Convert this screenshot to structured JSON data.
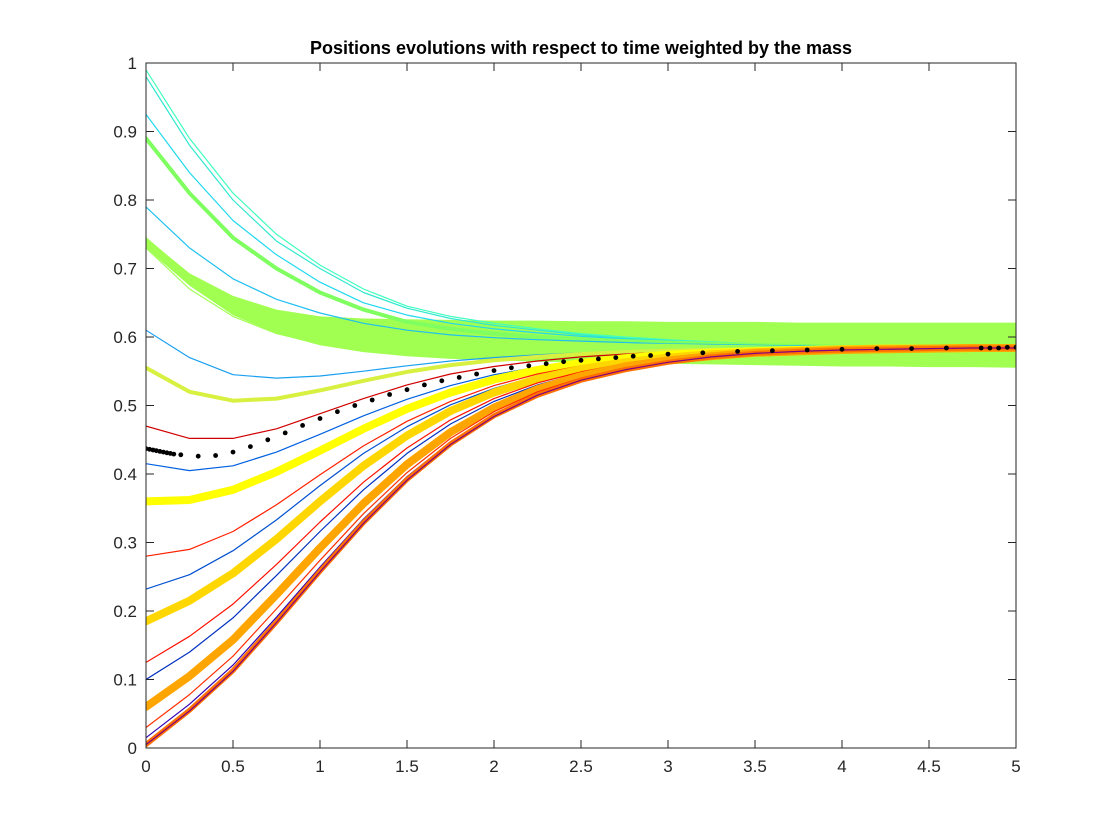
{
  "chart_data": {
    "type": "line",
    "title": "Positions evolutions with respect to time weighted by the mass",
    "xlabel": "",
    "ylabel": "",
    "xlim": [
      0,
      5
    ],
    "ylim": [
      0,
      1
    ],
    "xticks": [
      0,
      0.5,
      1,
      1.5,
      2,
      2.5,
      3,
      3.5,
      4,
      4.5,
      5
    ],
    "yticks": [
      0,
      0.1,
      0.2,
      0.3,
      0.4,
      0.5,
      0.6,
      0.7,
      0.8,
      0.9,
      1
    ],
    "xtick_labels": [
      "0",
      "0.5",
      "1",
      "1.5",
      "2",
      "2.5",
      "3",
      "3.5",
      "4",
      "4.5",
      "5"
    ],
    "ytick_labels": [
      "0",
      "0.1",
      "0.2",
      "0.3",
      "0.4",
      "0.5",
      "0.6",
      "0.7",
      "0.8",
      "0.9",
      "1"
    ],
    "grid": false,
    "legend": "none",
    "x": [
      0,
      0.25,
      0.5,
      0.75,
      1,
      1.25,
      1.5,
      1.75,
      2,
      2.25,
      2.5,
      2.75,
      3,
      3.25,
      3.5,
      3.75,
      4,
      4.25,
      4.5,
      4.75,
      5
    ],
    "series": [
      {
        "color": "#40ffbf",
        "values": [
          0.99,
          0.89,
          0.81,
          0.75,
          0.705,
          0.67,
          0.645,
          0.63,
          0.62,
          0.612,
          0.605,
          0.6,
          0.596,
          0.593,
          0.59,
          0.588,
          0.587,
          0.586,
          0.585,
          0.585,
          0.585
        ]
      },
      {
        "color": "#30e8d0",
        "values": [
          0.98,
          0.88,
          0.8,
          0.74,
          0.7,
          0.665,
          0.642,
          0.627,
          0.617,
          0.61,
          0.603,
          0.598,
          0.595,
          0.592,
          0.589,
          0.588,
          0.587,
          0.586,
          0.585,
          0.585,
          0.585
        ]
      },
      {
        "color": "#20d8f0",
        "values": [
          0.925,
          0.84,
          0.77,
          0.72,
          0.68,
          0.65,
          0.632,
          0.62,
          0.612,
          0.606,
          0.601,
          0.597,
          0.594,
          0.591,
          0.589,
          0.588,
          0.587,
          0.586,
          0.585,
          0.585,
          0.585
        ]
      },
      {
        "color": "#80ff60",
        "width": 4,
        "values": [
          0.89,
          0.81,
          0.745,
          0.7,
          0.665,
          0.64,
          0.622,
          0.612,
          0.605,
          0.6,
          0.597,
          0.594,
          0.592,
          0.59,
          0.588,
          0.587,
          0.586,
          0.586,
          0.585,
          0.585,
          0.585
        ]
      },
      {
        "color": "#20c0f0",
        "values": [
          0.79,
          0.73,
          0.685,
          0.655,
          0.635,
          0.62,
          0.61,
          0.603,
          0.599,
          0.596,
          0.594,
          0.592,
          0.59,
          0.589,
          0.588,
          0.587,
          0.586,
          0.586,
          0.585,
          0.585,
          0.585
        ]
      },
      {
        "color": "#a0ff50",
        "values": [
          0.745,
          0.69,
          0.655,
          0.632,
          0.618,
          0.609,
          0.602,
          0.598,
          0.595,
          0.593,
          0.591,
          0.59,
          0.589,
          0.588,
          0.587,
          0.586,
          0.586,
          0.585,
          0.585,
          0.585,
          0.585
        ]
      },
      {
        "color": "#a0ff50",
        "values": [
          0.73,
          0.67,
          0.63,
          0.605,
          0.59,
          0.58,
          0.574,
          0.571,
          0.57,
          0.57,
          0.571,
          0.572,
          0.574,
          0.576,
          0.578,
          0.579,
          0.58,
          0.581,
          0.582,
          0.583,
          0.583
        ]
      },
      {
        "color": "#1aa0f0",
        "values": [
          0.61,
          0.57,
          0.545,
          0.54,
          0.543,
          0.55,
          0.558,
          0.565,
          0.57,
          0.574,
          0.577,
          0.579,
          0.58,
          0.581,
          0.582,
          0.583,
          0.583,
          0.584,
          0.584,
          0.584,
          0.585
        ]
      },
      {
        "color": "#d8f040",
        "width": 4,
        "values": [
          0.555,
          0.52,
          0.507,
          0.51,
          0.522,
          0.536,
          0.549,
          0.559,
          0.566,
          0.571,
          0.575,
          0.578,
          0.58,
          0.581,
          0.582,
          0.583,
          0.583,
          0.584,
          0.584,
          0.584,
          0.585
        ]
      },
      {
        "color": "#d00000",
        "values": [
          0.47,
          0.452,
          0.452,
          0.466,
          0.488,
          0.51,
          0.53,
          0.546,
          0.557,
          0.565,
          0.571,
          0.575,
          0.578,
          0.58,
          0.581,
          0.582,
          0.583,
          0.583,
          0.584,
          0.584,
          0.584
        ]
      },
      {
        "color": "#0060e0",
        "values": [
          0.415,
          0.405,
          0.412,
          0.432,
          0.458,
          0.485,
          0.509,
          0.529,
          0.545,
          0.556,
          0.565,
          0.571,
          0.575,
          0.578,
          0.58,
          0.581,
          0.582,
          0.583,
          0.583,
          0.584,
          0.584
        ]
      },
      {
        "color": "#ffff00",
        "width": 8,
        "values": [
          0.36,
          0.362,
          0.377,
          0.403,
          0.434,
          0.466,
          0.495,
          0.519,
          0.538,
          0.552,
          0.562,
          0.569,
          0.574,
          0.577,
          0.579,
          0.581,
          0.582,
          0.583,
          0.583,
          0.584,
          0.584
        ]
      },
      {
        "color": "#ff2000",
        "values": [
          0.28,
          0.29,
          0.316,
          0.355,
          0.399,
          0.441,
          0.477,
          0.506,
          0.529,
          0.546,
          0.558,
          0.567,
          0.572,
          0.576,
          0.579,
          0.581,
          0.582,
          0.583,
          0.583,
          0.584,
          0.584
        ]
      },
      {
        "color": "#0050d0",
        "values": [
          0.232,
          0.253,
          0.288,
          0.333,
          0.383,
          0.43,
          0.469,
          0.501,
          0.525,
          0.543,
          0.556,
          0.565,
          0.571,
          0.575,
          0.578,
          0.58,
          0.582,
          0.583,
          0.583,
          0.584,
          0.584
        ]
      },
      {
        "color": "#ffd700",
        "width": 8,
        "values": [
          0.185,
          0.215,
          0.255,
          0.305,
          0.36,
          0.412,
          0.456,
          0.492,
          0.519,
          0.539,
          0.553,
          0.563,
          0.57,
          0.575,
          0.578,
          0.58,
          0.582,
          0.583,
          0.583,
          0.584,
          0.584
        ]
      },
      {
        "color": "#ff1000",
        "values": [
          0.125,
          0.163,
          0.21,
          0.268,
          0.33,
          0.388,
          0.438,
          0.479,
          0.51,
          0.533,
          0.549,
          0.561,
          0.569,
          0.574,
          0.578,
          0.58,
          0.582,
          0.583,
          0.583,
          0.584,
          0.584
        ]
      },
      {
        "color": "#0030c0",
        "values": [
          0.1,
          0.14,
          0.19,
          0.252,
          0.316,
          0.377,
          0.43,
          0.473,
          0.506,
          0.53,
          0.547,
          0.56,
          0.568,
          0.573,
          0.577,
          0.58,
          0.582,
          0.583,
          0.583,
          0.584,
          0.584
        ]
      },
      {
        "color": "#ffa500",
        "width": 8,
        "values": [
          0.06,
          0.105,
          0.158,
          0.224,
          0.292,
          0.357,
          0.414,
          0.461,
          0.497,
          0.524,
          0.543,
          0.557,
          0.566,
          0.572,
          0.577,
          0.579,
          0.581,
          0.582,
          0.583,
          0.584,
          0.584
        ]
      },
      {
        "color": "#ff3000",
        "values": [
          0.03,
          0.078,
          0.134,
          0.203,
          0.274,
          0.342,
          0.402,
          0.452,
          0.491,
          0.52,
          0.54,
          0.555,
          0.565,
          0.572,
          0.576,
          0.579,
          0.581,
          0.582,
          0.583,
          0.584,
          0.584
        ]
      },
      {
        "color": "#3000b0",
        "values": [
          0.015,
          0.064,
          0.121,
          0.191,
          0.264,
          0.334,
          0.396,
          0.447,
          0.487,
          0.517,
          0.538,
          0.553,
          0.564,
          0.571,
          0.576,
          0.579,
          0.581,
          0.582,
          0.583,
          0.584,
          0.584
        ]
      },
      {
        "color": "#ff7000",
        "width": 5,
        "values": [
          0.005,
          0.055,
          0.113,
          0.184,
          0.258,
          0.329,
          0.392,
          0.444,
          0.485,
          0.515,
          0.537,
          0.552,
          0.563,
          0.571,
          0.576,
          0.579,
          0.581,
          0.582,
          0.583,
          0.584,
          0.584
        ]
      },
      {
        "color": "#800080",
        "values": [
          0.005,
          0.054,
          0.112,
          0.183,
          0.257,
          0.328,
          0.391,
          0.443,
          0.484,
          0.515,
          0.537,
          0.552,
          0.563,
          0.571,
          0.576,
          0.579,
          0.581,
          0.582,
          0.583,
          0.584,
          0.584
        ]
      }
    ],
    "band": {
      "color": "#a0ff50",
      "x": [
        0,
        0.25,
        0.5,
        0.75,
        1,
        1.25,
        1.5,
        1.75,
        2,
        2.25,
        2.5,
        2.75,
        3,
        3.25,
        3.5,
        3.75,
        4,
        4.25,
        4.5,
        4.75,
        5
      ],
      "upper": [
        0.745,
        0.693,
        0.66,
        0.64,
        0.63,
        0.627,
        0.626,
        0.625,
        0.624,
        0.624,
        0.623,
        0.623,
        0.622,
        0.622,
        0.622,
        0.621,
        0.621,
        0.621,
        0.621,
        0.621,
        0.621
      ],
      "lower": [
        0.73,
        0.675,
        0.632,
        0.605,
        0.588,
        0.578,
        0.572,
        0.568,
        0.566,
        0.564,
        0.563,
        0.562,
        0.561,
        0.56,
        0.559,
        0.558,
        0.557,
        0.557,
        0.556,
        0.556,
        0.555
      ]
    },
    "mean_series": {
      "color": "#000000",
      "marker": "dot",
      "x": [
        0,
        0.02,
        0.04,
        0.06,
        0.08,
        0.1,
        0.12,
        0.14,
        0.16,
        0.2,
        0.3,
        0.4,
        0.5,
        0.6,
        0.7,
        0.8,
        0.9,
        1.0,
        1.1,
        1.2,
        1.3,
        1.4,
        1.5,
        1.6,
        1.7,
        1.8,
        1.9,
        2.0,
        2.1,
        2.2,
        2.3,
        2.4,
        2.5,
        2.6,
        2.7,
        2.8,
        2.9,
        3.0,
        3.2,
        3.4,
        3.6,
        3.8,
        4.0,
        4.2,
        4.4,
        4.6,
        4.8,
        4.85,
        4.9,
        4.95,
        5.0
      ],
      "values": [
        0.437,
        0.436,
        0.435,
        0.434,
        0.433,
        0.432,
        0.431,
        0.43,
        0.429,
        0.428,
        0.426,
        0.427,
        0.432,
        0.44,
        0.45,
        0.46,
        0.471,
        0.481,
        0.491,
        0.5,
        0.508,
        0.516,
        0.523,
        0.53,
        0.536,
        0.541,
        0.546,
        0.551,
        0.555,
        0.558,
        0.561,
        0.564,
        0.566,
        0.568,
        0.57,
        0.572,
        0.573,
        0.575,
        0.577,
        0.579,
        0.58,
        0.581,
        0.582,
        0.583,
        0.583,
        0.584,
        0.584,
        0.584,
        0.584,
        0.585,
        0.585
      ]
    }
  }
}
